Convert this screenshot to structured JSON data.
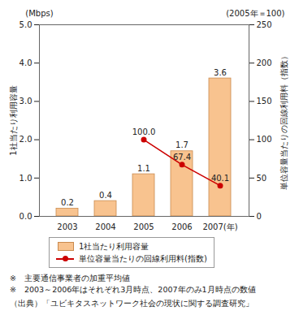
{
  "chart_data": {
    "type": "bar",
    "categories": [
      "2003",
      "2004",
      "2005",
      "2006",
      "2007(年)"
    ],
    "series": [
      {
        "name": "1社当たり利用容量",
        "type": "bar",
        "color": "#f8c38f",
        "values": [
          0.2,
          0.4,
          1.1,
          1.7,
          3.6
        ]
      },
      {
        "name": "単位容量当たりの回線利用料(指数)",
        "type": "line",
        "axis": "y2",
        "color": "#cc0000",
        "marker": "circle",
        "values": [
          null,
          null,
          100,
          67.4,
          40.1
        ],
        "value_labels": [
          null,
          null,
          "100.0",
          "67.4",
          "40.1"
        ]
      }
    ],
    "ylabel": "1社当たり利用容量",
    "y_unit": "(Mbps)",
    "ylim": [
      0,
      5
    ],
    "yticks": [
      0,
      1,
      2,
      3,
      4,
      5
    ],
    "y2label": "単位容量当たりの回線利用料（指数）",
    "y2_unit": "(2005年＝100)",
    "y2lim": [
      0,
      250
    ],
    "y2ticks": [
      0,
      50,
      100,
      150,
      200,
      250
    ],
    "grid": false,
    "data_labels": true,
    "legend": "bottom",
    "notes": [
      "※　主要通信事業者の加重平均値",
      "※　2003～2006年はそれぞれ3月時点、2007年のみ1月時点の数値"
    ],
    "source": "（出典）「ユビキタスネットワーク社会の現状に関する調査研究」"
  }
}
